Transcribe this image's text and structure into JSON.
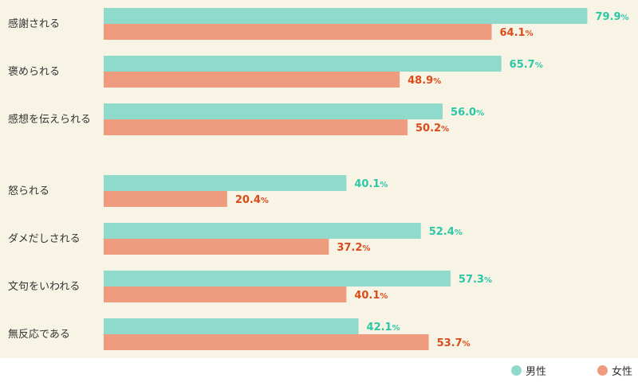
{
  "chart_data": {
    "type": "bar",
    "orientation": "horizontal",
    "categories": [
      "感謝される",
      "褒められる",
      "感想を伝えられる",
      "怒られる",
      "ダメだしされる",
      "文句をいわれる",
      "無反応である"
    ],
    "series": [
      {
        "name": "男性",
        "values": [
          79.9,
          65.7,
          56.0,
          40.1,
          52.4,
          57.3,
          42.1
        ],
        "color": "#8fdacb",
        "label_color": "#2cc7a6"
      },
      {
        "name": "女性",
        "values": [
          64.1,
          48.9,
          50.2,
          20.4,
          37.2,
          40.1,
          53.7
        ],
        "color": "#ee9b80",
        "label_color": "#dc4a1a"
      }
    ],
    "value_suffix": "%",
    "xlim": [
      0,
      100
    ],
    "group_gap_after": 2,
    "legend_position": "bottom-right",
    "grid": false
  },
  "colors": {
    "plot_background": "#f7f4e6",
    "page_background": "#ffffff",
    "text": "#333333"
  }
}
